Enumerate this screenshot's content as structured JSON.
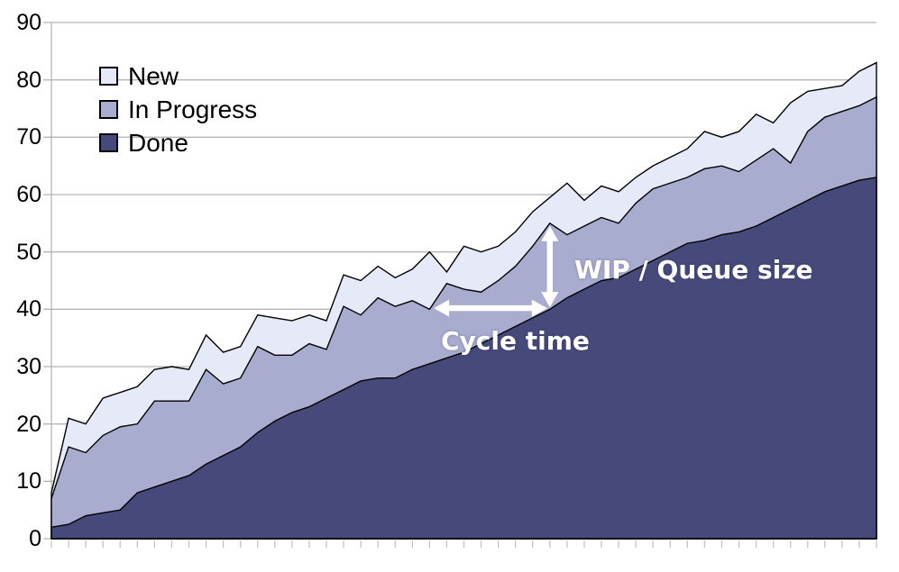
{
  "chart_data": {
    "type": "area",
    "stacked": true,
    "title": "",
    "x_points": 49,
    "x_tick_labels": [],
    "ylim": [
      0,
      90
    ],
    "y_ticks": [
      90,
      80,
      70,
      60,
      50,
      40,
      30,
      20,
      10,
      0
    ],
    "grid": true,
    "legend_position": "top-left",
    "legend": [
      "New",
      "In Progress",
      "Done"
    ],
    "series": [
      {
        "name": "New",
        "color": "#E6E9F8",
        "cumulative_top": [
          8,
          21,
          20,
          24.5,
          25.5,
          26.5,
          29.5,
          30,
          29.5,
          35.5,
          32.5,
          33.5,
          39,
          38.5,
          38,
          39,
          38,
          46,
          45,
          47.5,
          45.5,
          47,
          50,
          46.5,
          51,
          50,
          51,
          53.5,
          57,
          59.5,
          62,
          59,
          61.5,
          60.5,
          63,
          65,
          66.5,
          68,
          71,
          70,
          71,
          74,
          72.5,
          76,
          78,
          78.5,
          79,
          81.5,
          83
        ]
      },
      {
        "name": "In Progress",
        "color": "#A8ACCE",
        "cumulative_top": [
          7,
          16,
          15,
          18,
          19.5,
          20,
          24,
          24,
          24,
          29.5,
          27,
          28,
          33.5,
          32,
          32,
          34,
          33,
          40.5,
          39,
          42,
          40.5,
          41.5,
          40,
          44.5,
          43.5,
          43,
          45,
          47.5,
          51,
          55,
          53,
          54.5,
          56,
          55,
          58.5,
          61,
          62,
          63,
          64.5,
          65,
          64,
          66,
          68,
          65.5,
          71,
          73.5,
          74.5,
          75.5,
          77
        ]
      },
      {
        "name": "Done",
        "color": "#464A7A",
        "cumulative_top": [
          2,
          2.5,
          4,
          4.5,
          5,
          8,
          9,
          10,
          11,
          13,
          14.5,
          16,
          18.5,
          20.5,
          22,
          23,
          24.5,
          26,
          27.5,
          28,
          28,
          29.5,
          30.5,
          31.5,
          32.5,
          34,
          35.5,
          37,
          38.5,
          40,
          42,
          43.5,
          45,
          45.5,
          47,
          48.5,
          50,
          51.5,
          52,
          53,
          53.5,
          54.5,
          56,
          57.5,
          59,
          60.5,
          61.5,
          62.5,
          63
        ]
      }
    ],
    "annotations": {
      "wip_label": {
        "text": "WIP / Queue size"
      },
      "cycle_label": {
        "text": "Cycle time"
      },
      "wip_arrow": {
        "orientation": "vertical",
        "day": 29,
        "from_value": 40.2,
        "to_value": 55
      },
      "cycle_arrow": {
        "orientation": "horizontal",
        "value": 40.2,
        "from_day": 22.25,
        "to_day": 29
      }
    },
    "colors": {
      "background": "#ffffff",
      "grid": "#b5b5b5",
      "axis": "#b5b5b5",
      "x_tick": "#c2c2c2",
      "series_outline": "#000000",
      "annotation": "#ffffff",
      "axis_text": "#000000"
    }
  }
}
